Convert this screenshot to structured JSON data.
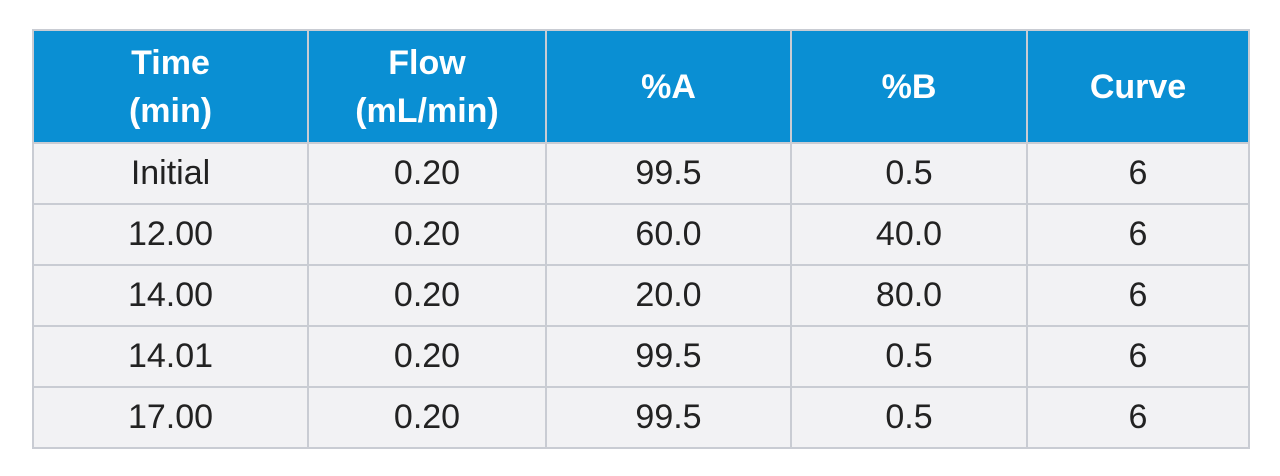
{
  "table": {
    "header": [
      [
        "Time",
        "(min)"
      ],
      [
        "Flow",
        "(mL/min)"
      ],
      [
        "%A"
      ],
      [
        "%B"
      ],
      [
        "Curve"
      ]
    ],
    "rows": [
      [
        "Initial",
        "0.20",
        "99.5",
        "0.5",
        "6"
      ],
      [
        "12.00",
        "0.20",
        "60.0",
        "40.0",
        "6"
      ],
      [
        "14.00",
        "0.20",
        "20.0",
        "80.0",
        "6"
      ],
      [
        "14.01",
        "0.20",
        "99.5",
        "0.5",
        "6"
      ],
      [
        "17.00",
        "0.20",
        "99.5",
        "0.5",
        "6"
      ]
    ]
  },
  "colors": {
    "header_bg": "#0a8fd3",
    "header_text": "#ffffff",
    "row_bg": "#f2f2f4",
    "grid": "#c9ccd3"
  }
}
